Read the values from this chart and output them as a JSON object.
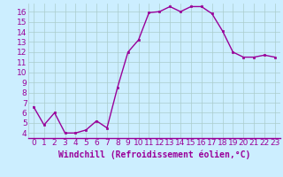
{
  "x": [
    0,
    1,
    2,
    3,
    4,
    5,
    6,
    7,
    8,
    9,
    10,
    11,
    12,
    13,
    14,
    15,
    16,
    17,
    18,
    19,
    20,
    21,
    22,
    23
  ],
  "y": [
    6.6,
    4.8,
    6.0,
    4.0,
    4.0,
    4.3,
    5.2,
    4.5,
    8.5,
    12.0,
    13.2,
    15.9,
    16.0,
    16.5,
    16.0,
    16.5,
    16.5,
    15.8,
    14.1,
    12.0,
    11.5,
    11.5,
    11.7,
    11.5
  ],
  "line_color": "#990099",
  "marker": "s",
  "marker_size": 2.0,
  "line_width": 1.0,
  "bg_color": "#cceeff",
  "grid_color": "#aacccc",
  "xlabel": "Windchill (Refroidissement éolien,°C)",
  "xlabel_color": "#990099",
  "tick_color": "#990099",
  "xlim": [
    -0.5,
    23.5
  ],
  "ylim": [
    3.5,
    16.8
  ],
  "yticks": [
    4,
    5,
    6,
    7,
    8,
    9,
    10,
    11,
    12,
    13,
    14,
    15,
    16
  ],
  "xticks": [
    0,
    1,
    2,
    3,
    4,
    5,
    6,
    7,
    8,
    9,
    10,
    11,
    12,
    13,
    14,
    15,
    16,
    17,
    18,
    19,
    20,
    21,
    22,
    23
  ],
  "font_size": 6.5,
  "xlabel_fontsize": 7.0
}
